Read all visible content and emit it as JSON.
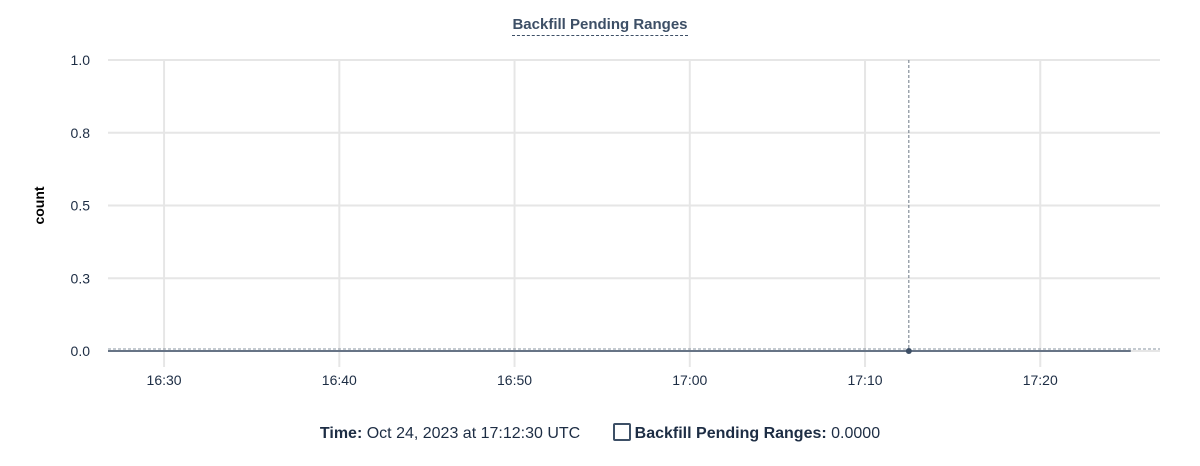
{
  "chart_data": {
    "type": "line",
    "title": "Backfill Pending Ranges",
    "xlabel": "",
    "ylabel": "count",
    "ylim": [
      0,
      1
    ],
    "xlim": [
      "16:26:48",
      "17:26:50"
    ],
    "y_ticks": [
      {
        "v": 1.0,
        "label": "1.0"
      },
      {
        "v": 0.75,
        "label": "0.8"
      },
      {
        "v": 0.5,
        "label": "0.5"
      },
      {
        "v": 0.25,
        "label": "0.3"
      },
      {
        "v": 0,
        "label": "0.0"
      }
    ],
    "x_ticks": [
      "16:30",
      "16:40",
      "16:50",
      "17:00",
      "17:10",
      "17:20"
    ],
    "grid": true,
    "series": [
      {
        "name": "Backfill Pending Ranges",
        "color": "#3d4f66",
        "x": [
          "16:26:48",
          "17:25:10"
        ],
        "y": [
          0,
          0
        ]
      }
    ],
    "crosshair": {
      "x": "17:12:30",
      "y": 0
    }
  },
  "legend": {
    "time_label": "Time:",
    "time_value": "Oct 24, 2023 at 17:12:30 UTC",
    "series_label": "Backfill Pending Ranges:",
    "series_value": "0.0000"
  }
}
